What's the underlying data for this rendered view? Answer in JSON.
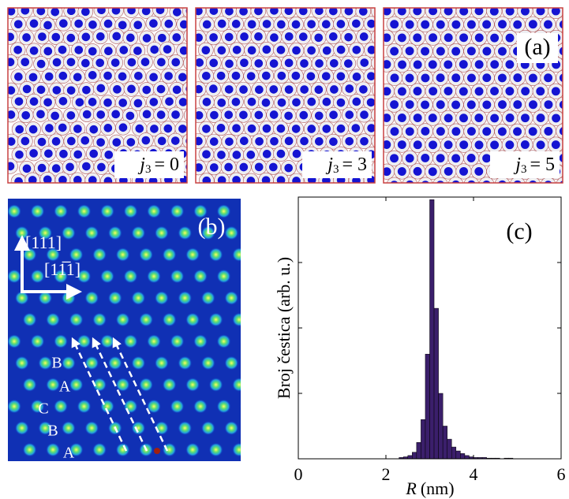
{
  "panel_a": {
    "label": "(a)",
    "captions": [
      {
        "symbol": "j",
        "subscript": "3",
        "relation": "= 0"
      },
      {
        "symbol": "j",
        "subscript": "3",
        "relation": "= 3"
      },
      {
        "symbol": "j",
        "subscript": "3",
        "relation": "= 5"
      }
    ]
  },
  "panel_b": {
    "label": "(b)",
    "directions": [
      "[111]",
      "[11̅1]"
    ],
    "layers": [
      "B",
      "A",
      "C",
      "B",
      "A"
    ]
  },
  "chart_data": {
    "type": "histogram",
    "label": "(c)",
    "xlabel": {
      "symbol": "R",
      "unit": "(nm)"
    },
    "ylabel": "Broj čestica (arb. u.)",
    "bins": [
      2.3,
      2.4,
      2.5,
      2.6,
      2.7,
      2.8,
      2.9,
      3.0,
      3.1,
      3.2,
      3.3,
      3.4,
      3.5,
      3.6,
      3.7,
      3.8,
      3.9,
      4.0,
      4.1,
      4.2,
      4.3,
      4.4,
      4.5,
      4.6,
      4.7,
      4.8,
      4.9
    ],
    "counts": [
      0.02,
      0.03,
      0.05,
      0.1,
      0.25,
      0.6,
      1.6,
      3.96,
      2.3,
      1.0,
      0.5,
      0.3,
      0.18,
      0.12,
      0.08,
      0.05,
      0.03,
      0.02,
      0.02,
      0.02,
      0.01,
      0.01,
      0.01,
      0,
      0.01,
      0.01
    ],
    "color": "#3b1f6b",
    "xlim": [
      0,
      6
    ],
    "xticks": [
      0,
      2,
      4,
      6
    ],
    "ylim": [
      0,
      4
    ],
    "yticks": [
      0,
      1,
      2,
      3,
      4
    ]
  }
}
